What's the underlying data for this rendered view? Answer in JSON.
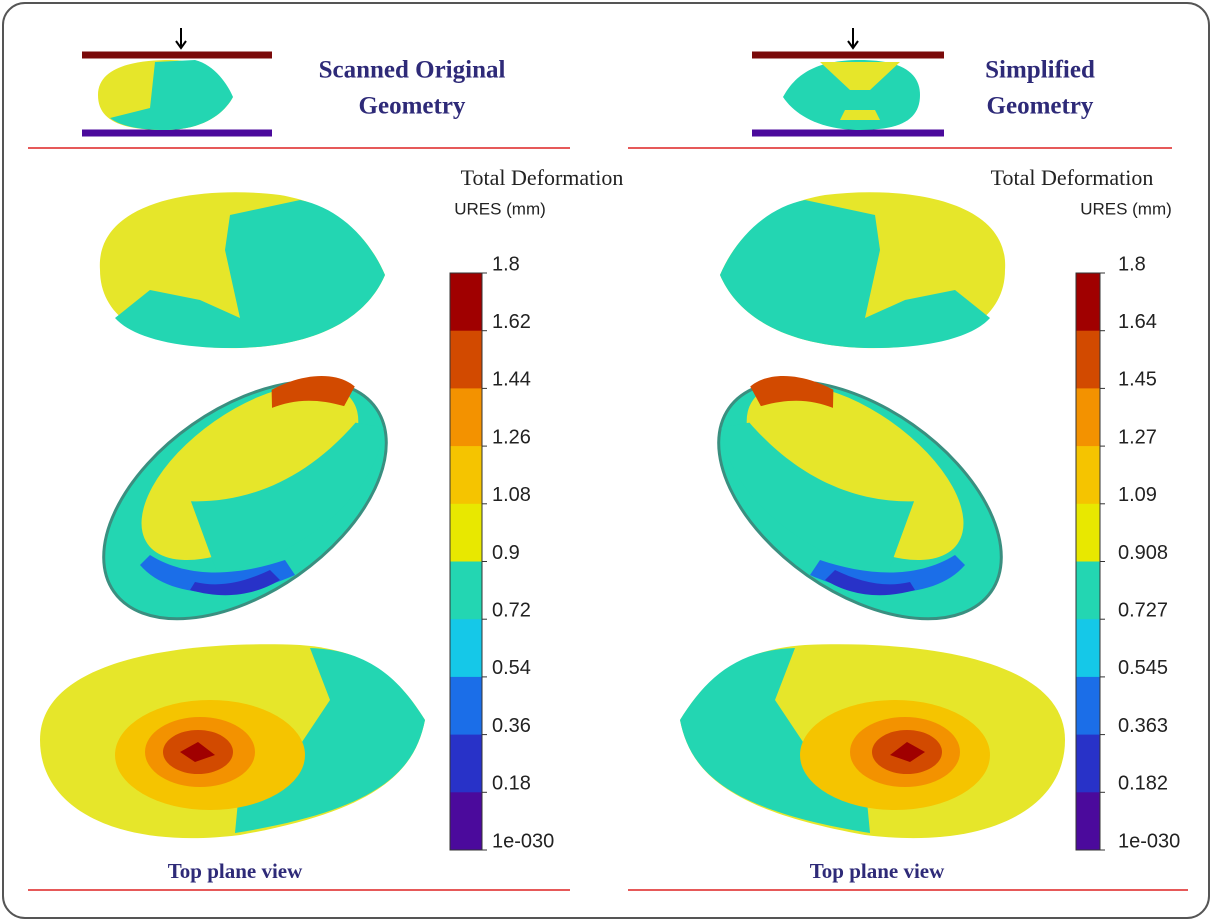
{
  "panels": [
    {
      "title_lines": [
        "Scanned Original",
        "Geometry"
      ],
      "legend_title": "Total Deformation",
      "unit": "URES (mm)",
      "ticks": [
        "1.8",
        "1.62",
        "1.44",
        "1.26",
        "1.08",
        "0.9",
        "0.72",
        "0.54",
        "0.36",
        "0.18",
        "1e-030"
      ],
      "caption": "Top plane view"
    },
    {
      "title_lines": [
        "Simplified",
        "Geometry"
      ],
      "legend_title": "Total Deformation",
      "unit": "URES (mm)",
      "ticks": [
        "1.8",
        "1.64",
        "1.45",
        "1.27",
        "1.09",
        "0.908",
        "0.727",
        "0.545",
        "0.363",
        "0.182",
        "1e-030"
      ],
      "caption": "Top plane view"
    }
  ]
}
